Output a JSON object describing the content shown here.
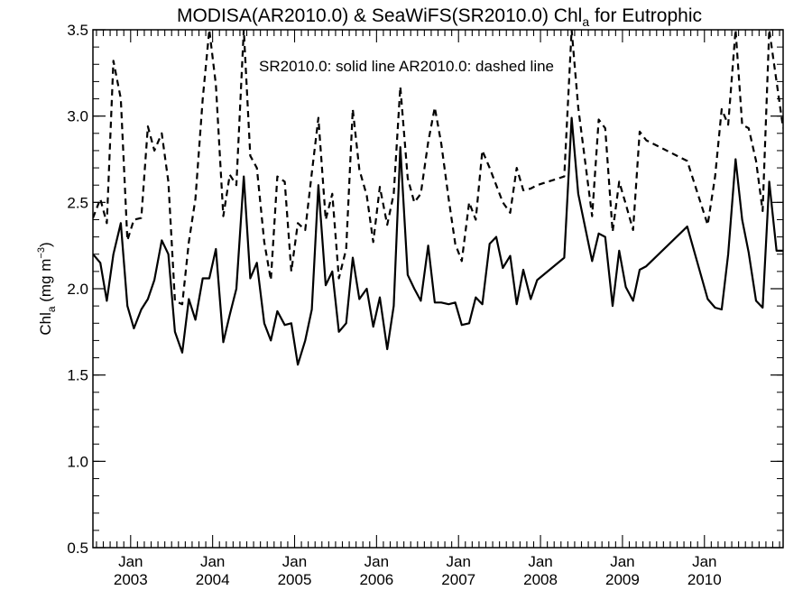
{
  "chart_data": {
    "type": "line",
    "title_main": "MODISA(AR2010.0) & SeaWiFS(SR2010.0)  Chl",
    "title_sub": "a",
    "title_tail": " for Eutrophic",
    "ylabel_main": "Chl",
    "ylabel_sub": "a",
    "ylabel_unit": " (mg m",
    "ylabel_sup": "−3",
    "ylabel_close": ")",
    "legend_text": "SR2010.0: solid line   AR2010.0: dashed line",
    "ylim": [
      0.5,
      3.5
    ],
    "xlim": [
      2002.54,
      2010.96
    ],
    "yticks": [
      "0.5",
      "1.0",
      "1.5",
      "2.0",
      "2.5",
      "3.0",
      "3.5"
    ],
    "xticks": [
      {
        "month": "Jan",
        "year": "2003"
      },
      {
        "month": "Jan",
        "year": "2004"
      },
      {
        "month": "Jan",
        "year": "2005"
      },
      {
        "month": "Jan",
        "year": "2006"
      },
      {
        "month": "Jan",
        "year": "2007"
      },
      {
        "month": "Jan",
        "year": "2008"
      },
      {
        "month": "Jan",
        "year": "2009"
      },
      {
        "month": "Jan",
        "year": "2010"
      }
    ],
    "series": [
      {
        "style": "solid",
        "x": [
          2002.54,
          2002.63,
          2002.71,
          2002.79,
          2002.88,
          2002.96,
          2003.04,
          2003.13,
          2003.21,
          2003.29,
          2003.38,
          2003.46,
          2003.54,
          2003.63,
          2003.71,
          2003.79,
          2003.88,
          2003.96,
          2004.04,
          2004.13,
          2004.21,
          2004.29,
          2004.38,
          2004.46,
          2004.54,
          2004.63,
          2004.71,
          2004.79,
          2004.88,
          2004.96,
          2005.04,
          2005.13,
          2005.21,
          2005.29,
          2005.38,
          2005.46,
          2005.54,
          2005.63,
          2005.71,
          2005.79,
          2005.88,
          2005.96,
          2006.04,
          2006.13,
          2006.21,
          2006.29,
          2006.38,
          2006.46,
          2006.54,
          2006.63,
          2006.71,
          2006.79,
          2006.88,
          2006.96,
          2007.04,
          2007.13,
          2007.21,
          2007.29,
          2007.38,
          2007.46,
          2007.54,
          2007.63,
          2007.71,
          2007.79,
          2007.88,
          2007.96,
          2008.29,
          2008.38,
          2008.46,
          2008.63,
          2008.71,
          2008.79,
          2008.88,
          2008.96,
          2009.04,
          2009.13,
          2009.21,
          2009.29,
          2009.79,
          2010.04,
          2010.13,
          2010.21,
          2010.29,
          2010.38,
          2010.46,
          2010.54,
          2010.63,
          2010.71,
          2010.79,
          2010.88,
          2010.96
        ],
        "y": [
          2.2,
          2.15,
          1.93,
          2.2,
          2.38,
          1.9,
          1.77,
          1.88,
          1.94,
          2.05,
          2.28,
          2.2,
          1.75,
          1.63,
          1.94,
          1.82,
          2.06,
          2.06,
          2.23,
          1.69,
          1.85,
          2.0,
          2.65,
          2.06,
          2.15,
          1.8,
          1.7,
          1.87,
          1.79,
          1.8,
          1.56,
          1.7,
          1.88,
          2.6,
          2.02,
          2.1,
          1.75,
          1.8,
          2.18,
          1.94,
          2.0,
          1.78,
          1.95,
          1.65,
          1.9,
          2.82,
          2.08,
          2.0,
          1.93,
          2.25,
          1.92,
          1.92,
          1.91,
          1.92,
          1.79,
          1.8,
          1.95,
          1.91,
          2.26,
          2.3,
          2.12,
          2.19,
          1.91,
          2.11,
          1.94,
          2.05,
          2.18,
          2.99,
          2.55,
          2.16,
          2.32,
          2.3,
          1.9,
          2.22,
          2.01,
          1.93,
          2.11,
          2.13,
          2.36,
          1.94,
          1.89,
          1.88,
          2.2,
          2.75,
          2.4,
          2.21,
          1.93,
          1.89,
          2.62,
          2.22,
          2.22
        ]
      },
      {
        "style": "dashed",
        "x": [
          2002.54,
          2002.63,
          2002.71,
          2002.79,
          2002.88,
          2002.96,
          2003.04,
          2003.13,
          2003.21,
          2003.29,
          2003.38,
          2003.46,
          2003.54,
          2003.63,
          2003.71,
          2003.79,
          2003.88,
          2003.96,
          2004.04,
          2004.13,
          2004.21,
          2004.29,
          2004.38,
          2004.46,
          2004.54,
          2004.63,
          2004.71,
          2004.79,
          2004.88,
          2004.96,
          2005.04,
          2005.13,
          2005.21,
          2005.29,
          2005.38,
          2005.46,
          2005.54,
          2005.63,
          2005.71,
          2005.79,
          2005.88,
          2005.96,
          2006.04,
          2006.13,
          2006.21,
          2006.29,
          2006.38,
          2006.46,
          2006.54,
          2006.63,
          2006.71,
          2006.79,
          2006.88,
          2006.96,
          2007.04,
          2007.13,
          2007.21,
          2007.29,
          2007.38,
          2007.46,
          2007.54,
          2007.63,
          2007.71,
          2007.79,
          2007.88,
          2007.96,
          2008.29,
          2008.38,
          2008.46,
          2008.63,
          2008.71,
          2008.79,
          2008.88,
          2008.96,
          2009.04,
          2009.13,
          2009.21,
          2009.29,
          2009.79,
          2010.04,
          2010.13,
          2010.21,
          2010.29,
          2010.38,
          2010.46,
          2010.54,
          2010.63,
          2010.71,
          2010.79,
          2010.88,
          2010.96
        ],
        "y": [
          2.41,
          2.52,
          2.38,
          3.32,
          3.1,
          2.28,
          2.4,
          2.41,
          2.94,
          2.8,
          2.9,
          2.62,
          1.93,
          1.91,
          2.27,
          2.52,
          3.1,
          3.5,
          3.18,
          2.42,
          2.66,
          2.6,
          3.5,
          2.77,
          2.7,
          2.27,
          2.05,
          2.65,
          2.62,
          2.1,
          2.38,
          2.34,
          2.67,
          2.99,
          2.4,
          2.55,
          2.06,
          2.23,
          3.04,
          2.69,
          2.54,
          2.27,
          2.59,
          2.37,
          2.55,
          3.17,
          2.64,
          2.5,
          2.55,
          2.85,
          3.05,
          2.84,
          2.52,
          2.26,
          2.16,
          2.5,
          2.4,
          2.8,
          2.7,
          2.6,
          2.5,
          2.44,
          2.7,
          2.57,
          2.58,
          2.6,
          2.65,
          3.5,
          3.05,
          2.42,
          2.98,
          2.93,
          2.33,
          2.62,
          2.49,
          2.34,
          2.91,
          2.86,
          2.74,
          2.37,
          2.65,
          3.04,
          2.95,
          3.5,
          2.95,
          2.93,
          2.74,
          2.45,
          3.5,
          3.2,
          2.93
        ]
      }
    ]
  }
}
